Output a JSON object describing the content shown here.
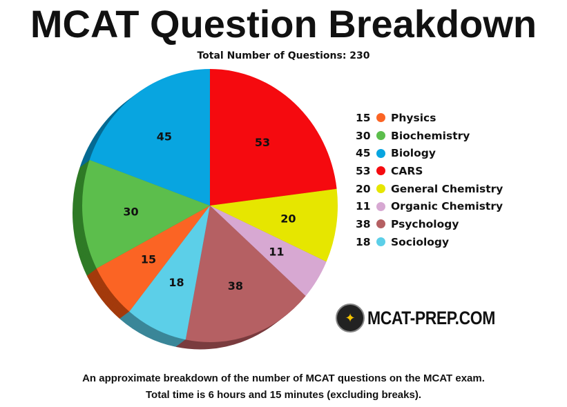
{
  "chart_data": {
    "type": "pie",
    "title": "MCAT Question Breakdown",
    "subtitle": "Total Number of Questions: 230",
    "slices": [
      {
        "label": "CARS",
        "value": 53,
        "color": "#f50a0f",
        "dark": "#a00008"
      },
      {
        "label": "General Chemistry",
        "value": 20,
        "color": "#e6e600",
        "dark": "#9a9a00"
      },
      {
        "label": "Organic Chemistry",
        "value": 11,
        "color": "#d7a8d2",
        "dark": "#9a7296"
      },
      {
        "label": "Psychology",
        "value": 38,
        "color": "#b56063",
        "dark": "#7a3c3f"
      },
      {
        "label": "Sociology",
        "value": 18,
        "color": "#5ccfe8",
        "dark": "#3a8698"
      },
      {
        "label": "Physics",
        "value": 15,
        "color": "#fb6424",
        "dark": "#a33a0c"
      },
      {
        "label": "Biochemistry",
        "value": 30,
        "color": "#5cbe4c",
        "dark": "#2f7a26"
      },
      {
        "label": "Biology",
        "value": 45,
        "color": "#08a5e0",
        "dark": "#066a93"
      }
    ],
    "legend": [
      {
        "value": "15",
        "label": "Physics",
        "color": "#fb6424"
      },
      {
        "value": "30",
        "label": "Biochemistry",
        "color": "#5cbe4c"
      },
      {
        "value": "45",
        "label": "Biology",
        "color": "#08a5e0"
      },
      {
        "value": "53",
        "label": "CARS",
        "color": "#f50a0f"
      },
      {
        "value": "20",
        "label": "General Chemistry",
        "color": "#e6e600"
      },
      {
        "value": "11",
        "label": "Organic Chemistry",
        "color": "#d7a8d2"
      },
      {
        "value": "38",
        "label": "Psychology",
        "color": "#b56063"
      },
      {
        "value": "18",
        "label": "Sociology",
        "color": "#5ccfe8"
      }
    ],
    "legend_position": "right"
  },
  "logo_text": "MCAT-PREP.COM",
  "caption": {
    "line1": "An approximate breakdown of the number of MCAT questions on the MCAT exam.",
    "line2": "Total time is 6 hours and 15 minutes (excluding breaks)."
  }
}
